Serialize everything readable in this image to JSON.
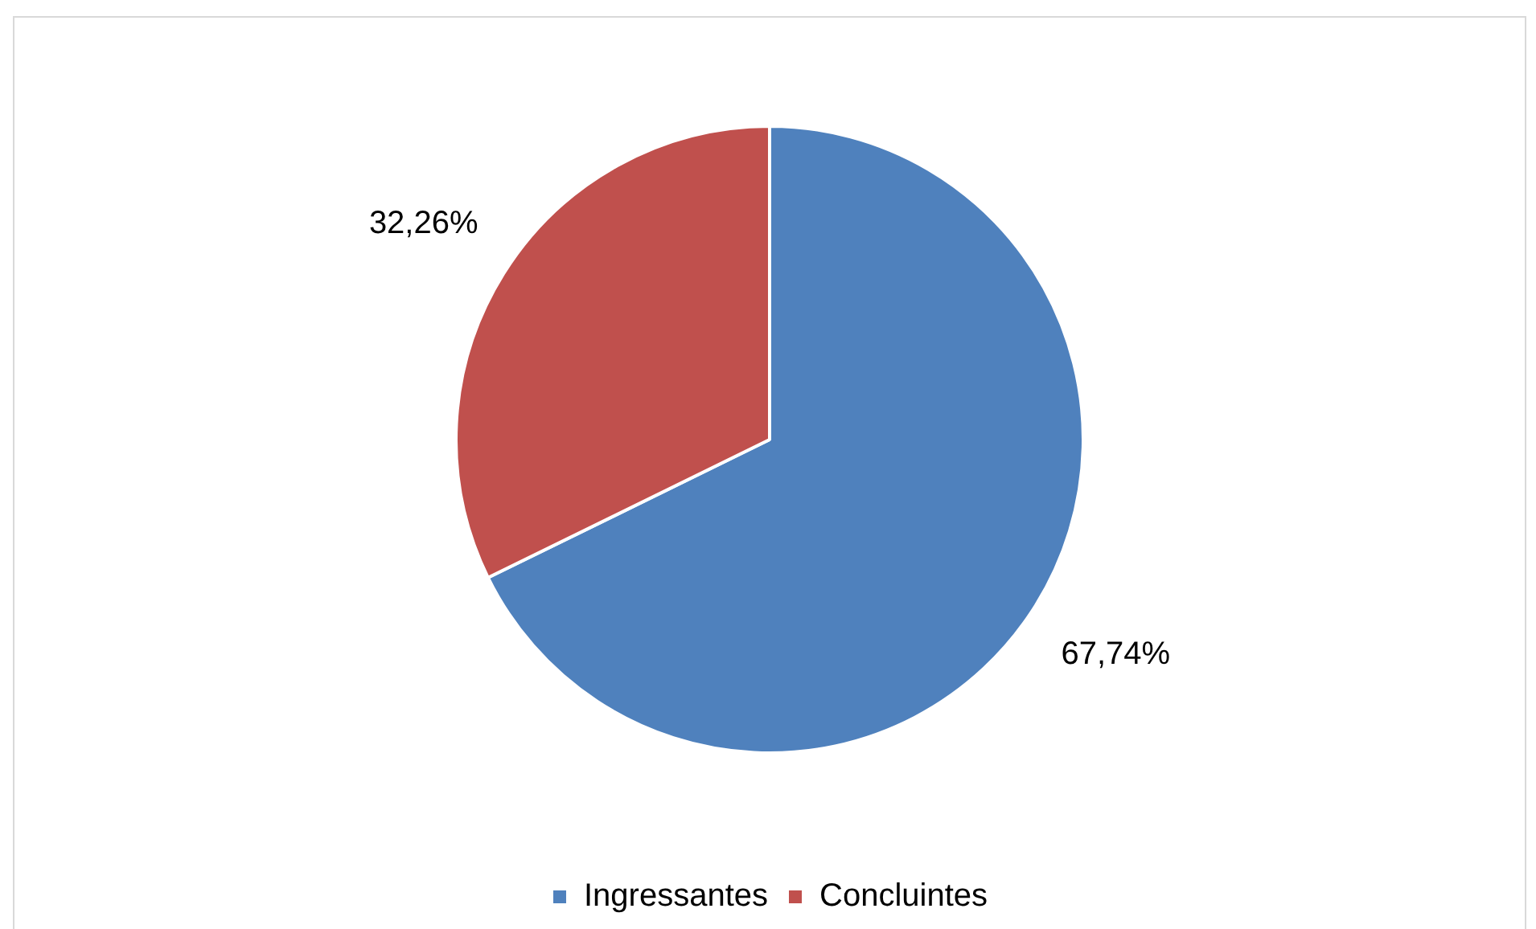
{
  "chart_data": {
    "type": "pie",
    "categories": [
      "Ingressantes",
      "Concluintes"
    ],
    "values": [
      67.74,
      32.26
    ],
    "colors": [
      "#4f81bd",
      "#c0504d"
    ],
    "value_labels": [
      "67,74%",
      "32,26%"
    ],
    "legend": "bottom"
  }
}
